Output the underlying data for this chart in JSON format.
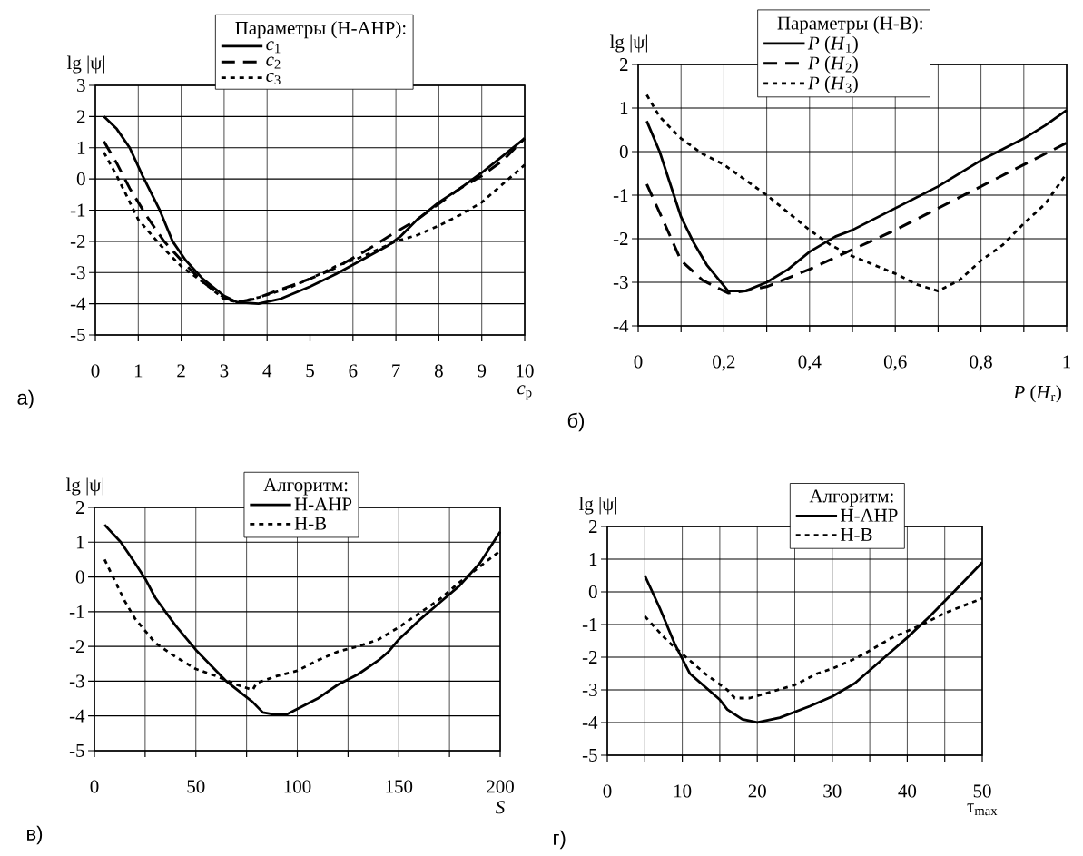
{
  "chart_data": [
    {
      "type": "line",
      "xlabel": "*c*$_{p}$",
      "ylabel": "lg |ψ|",
      "legend_title": "Параметры (Н-АНР):",
      "legend": "top",
      "grid": true,
      "annotations": [
        "а)"
      ],
      "xlim": [
        0,
        10
      ],
      "ylim": [
        -5,
        3
      ],
      "xticks": [
        0,
        1,
        2,
        3,
        4,
        5,
        6,
        7,
        8,
        9,
        10
      ],
      "yticks": [
        -5,
        -4,
        -3,
        -2,
        -1,
        0,
        1,
        2,
        3
      ],
      "series": [
        {
          "name": "*c*$_{1}$",
          "color": "#000000",
          "line_style": "solid",
          "x": [
            0.2,
            0.5,
            0.8,
            1.1,
            1.5,
            1.8,
            2.1,
            2.5,
            3.0,
            3.3,
            3.8,
            4.3,
            5.0,
            5.6,
            6.2,
            6.8,
            7.1,
            7.5,
            8.0,
            8.5,
            9.0,
            9.5,
            10
          ],
          "values": [
            2.0,
            1.6,
            1.0,
            0.1,
            -1.0,
            -2.0,
            -2.6,
            -3.2,
            -3.75,
            -3.95,
            -4.0,
            -3.85,
            -3.45,
            -3.05,
            -2.6,
            -2.15,
            -1.85,
            -1.3,
            -0.75,
            -0.3,
            0.2,
            0.75,
            1.3
          ]
        },
        {
          "name": "*c*$_{2}$",
          "color": "#000000",
          "line_style": "dashed",
          "x": [
            0.2,
            0.5,
            0.8,
            1.2,
            1.6,
            2.0,
            2.5,
            3.0,
            3.3,
            3.7,
            4.2,
            5.0,
            5.6,
            6.3,
            7.0,
            7.5,
            8.0,
            8.5,
            9.0,
            9.5,
            10
          ],
          "values": [
            1.2,
            0.5,
            -0.3,
            -1.2,
            -2.0,
            -2.6,
            -3.3,
            -3.8,
            -3.95,
            -3.85,
            -3.6,
            -3.2,
            -2.85,
            -2.3,
            -1.7,
            -1.3,
            -0.8,
            -0.3,
            0.1,
            0.6,
            1.3
          ]
        },
        {
          "name": "*c*$_{3}$",
          "color": "#000000",
          "line_style": "dotted",
          "x": [
            0.2,
            0.5,
            1.0,
            1.5,
            2.0,
            2.5,
            3.0,
            3.3,
            3.8,
            4.5,
            5.0,
            5.6,
            6.2,
            7.0,
            7.5,
            8.0,
            8.5,
            9.0,
            9.5,
            10
          ],
          "values": [
            0.85,
            0.1,
            -1.3,
            -2.1,
            -2.8,
            -3.3,
            -3.85,
            -3.95,
            -3.8,
            -3.5,
            -3.2,
            -2.8,
            -2.5,
            -2.0,
            -1.8,
            -1.5,
            -1.15,
            -0.75,
            -0.15,
            0.45
          ]
        }
      ]
    },
    {
      "type": "line",
      "xlabel": "*P* (*H*$_{r}$)",
      "ylabel": "lg |ψ|",
      "legend_title": "Параметры (Н-В):",
      "legend": "top",
      "grid": true,
      "annotations": [
        "б)"
      ],
      "xlim": [
        0,
        1
      ],
      "ylim": [
        -4,
        2
      ],
      "xticks": [
        0,
        {
          "value": 0.1,
          "label": null
        },
        {
          "value": 0.2,
          "label": "0,2"
        },
        {
          "value": 0.3,
          "label": null
        },
        {
          "value": 0.4,
          "label": "0,4"
        },
        {
          "value": 0.5,
          "label": null
        },
        {
          "value": 0.6,
          "label": "0,6"
        },
        {
          "value": 0.7,
          "label": null
        },
        {
          "value": 0.8,
          "label": "0,8"
        },
        {
          "value": 0.9,
          "label": null
        },
        1
      ],
      "yticks": [
        -4,
        -3,
        -2,
        -1,
        0,
        1,
        2
      ],
      "series": [
        {
          "name": "*P* (*H*$_{1}$)",
          "color": "#000000",
          "line_style": "solid",
          "x": [
            0.02,
            0.05,
            0.07,
            0.1,
            0.13,
            0.16,
            0.21,
            0.25,
            0.3,
            0.35,
            0.4,
            0.46,
            0.5,
            0.6,
            0.7,
            0.8,
            0.85,
            0.9,
            0.95,
            1.0
          ],
          "values": [
            0.7,
            0.0,
            -0.6,
            -1.5,
            -2.1,
            -2.6,
            -3.2,
            -3.2,
            -3.0,
            -2.7,
            -2.3,
            -1.95,
            -1.8,
            -1.3,
            -0.8,
            -0.2,
            0.05,
            0.3,
            0.6,
            0.95
          ]
        },
        {
          "name": "*P* (*H*$_{2}$)",
          "color": "#000000",
          "line_style": "dashed",
          "x": [
            0.02,
            0.05,
            0.1,
            0.15,
            0.21,
            0.25,
            0.3,
            0.4,
            0.5,
            0.6,
            0.7,
            0.75,
            0.8,
            0.9,
            1.0
          ],
          "values": [
            -0.75,
            -1.4,
            -2.5,
            -2.95,
            -3.25,
            -3.2,
            -3.1,
            -2.7,
            -2.25,
            -1.8,
            -1.3,
            -1.05,
            -0.8,
            -0.3,
            0.2
          ]
        },
        {
          "name": "*P* (*H*$_{3}$)",
          "color": "#000000",
          "line_style": "dotted",
          "x": [
            0.02,
            0.05,
            0.1,
            0.15,
            0.2,
            0.25,
            0.3,
            0.35,
            0.4,
            0.45,
            0.5,
            0.55,
            0.6,
            0.65,
            0.7,
            0.75,
            0.8,
            0.85,
            0.9,
            0.95,
            1.0
          ],
          "values": [
            1.3,
            0.8,
            0.3,
            -0.05,
            -0.3,
            -0.65,
            -1.0,
            -1.4,
            -1.8,
            -2.15,
            -2.4,
            -2.6,
            -2.8,
            -3.05,
            -3.2,
            -2.95,
            -2.5,
            -2.15,
            -1.65,
            -1.2,
            -0.5
          ]
        }
      ]
    },
    {
      "type": "line",
      "xlabel": "*S*",
      "ylabel": "lg |ψ|",
      "legend_title": "Алгоритм:",
      "legend": "top",
      "grid": true,
      "annotations": [
        "в)"
      ],
      "xlim": [
        0,
        200
      ],
      "ylim": [
        -5,
        2
      ],
      "xticks": [
        0,
        {
          "value": 25,
          "label": null
        },
        50,
        {
          "value": 75,
          "label": null
        },
        100,
        {
          "value": 125,
          "label": null
        },
        150,
        {
          "value": 175,
          "label": null
        },
        200
      ],
      "yticks": [
        -5,
        -4,
        -3,
        -2,
        -1,
        0,
        1,
        2
      ],
      "series": [
        {
          "name": "Н-АНР",
          "color": "#000000",
          "line_style": "solid",
          "x": [
            5,
            13,
            20,
            25,
            30,
            40,
            50,
            65,
            78,
            83,
            88,
            95,
            100,
            110,
            120,
            130,
            140,
            145,
            150,
            160,
            170,
            180,
            190,
            200
          ],
          "values": [
            1.5,
            1.0,
            0.4,
            -0.05,
            -0.6,
            -1.4,
            -2.1,
            -3.0,
            -3.6,
            -3.9,
            -3.95,
            -3.95,
            -3.8,
            -3.5,
            -3.1,
            -2.8,
            -2.4,
            -2.15,
            -1.8,
            -1.25,
            -0.75,
            -0.25,
            0.4,
            1.3
          ]
        },
        {
          "name": "Н-В",
          "color": "#000000",
          "line_style": "dotted",
          "x": [
            5,
            10,
            15,
            20,
            30,
            40,
            50,
            60,
            70,
            78,
            80,
            90,
            100,
            110,
            120,
            130,
            140,
            150,
            160,
            170,
            180,
            190,
            200
          ],
          "values": [
            0.5,
            -0.1,
            -0.7,
            -1.2,
            -1.9,
            -2.3,
            -2.65,
            -2.85,
            -3.1,
            -3.25,
            -3.05,
            -2.85,
            -2.7,
            -2.4,
            -2.15,
            -2.0,
            -1.8,
            -1.45,
            -1.05,
            -0.65,
            -0.15,
            0.3,
            0.75
          ]
        }
      ]
    },
    {
      "type": "line",
      "xlabel": "τ$_{max}$",
      "ylabel": "lg |ψ|",
      "legend_title": "Алгоритм:",
      "legend": "top right",
      "grid": true,
      "annotations": [
        "г)"
      ],
      "xlim": [
        0,
        50
      ],
      "ylim": [
        -5,
        2
      ],
      "xticks": [
        0,
        {
          "value": 5,
          "label": null
        },
        10,
        {
          "value": 15,
          "label": null
        },
        20,
        {
          "value": 25,
          "label": null
        },
        30,
        {
          "value": 35,
          "label": null
        },
        40,
        {
          "value": 45,
          "label": null
        },
        50
      ],
      "yticks": [
        -5,
        -4,
        -3,
        -2,
        -1,
        0,
        1,
        2
      ],
      "series": [
        {
          "name": "Н-АНР",
          "color": "#000000",
          "line_style": "solid",
          "x": [
            5,
            7,
            9,
            11,
            13,
            15,
            16,
            18,
            20,
            23,
            27,
            30,
            33,
            36,
            40,
            43,
            46,
            50
          ],
          "values": [
            0.5,
            -0.5,
            -1.6,
            -2.5,
            -2.9,
            -3.3,
            -3.6,
            -3.9,
            -4.0,
            -3.85,
            -3.5,
            -3.2,
            -2.8,
            -2.2,
            -1.4,
            -0.75,
            -0.05,
            0.9
          ]
        },
        {
          "name": "Н-В",
          "color": "#000000",
          "line_style": "dotted",
          "x": [
            5,
            8,
            10,
            13,
            16,
            17,
            19,
            22,
            25,
            28,
            30,
            33,
            35,
            38,
            40,
            42,
            45,
            50
          ],
          "values": [
            -0.75,
            -1.5,
            -1.9,
            -2.5,
            -3.0,
            -3.25,
            -3.25,
            -3.05,
            -2.85,
            -2.5,
            -2.35,
            -2.05,
            -1.8,
            -1.4,
            -1.2,
            -1.0,
            -0.65,
            -0.2
          ]
        }
      ]
    }
  ]
}
